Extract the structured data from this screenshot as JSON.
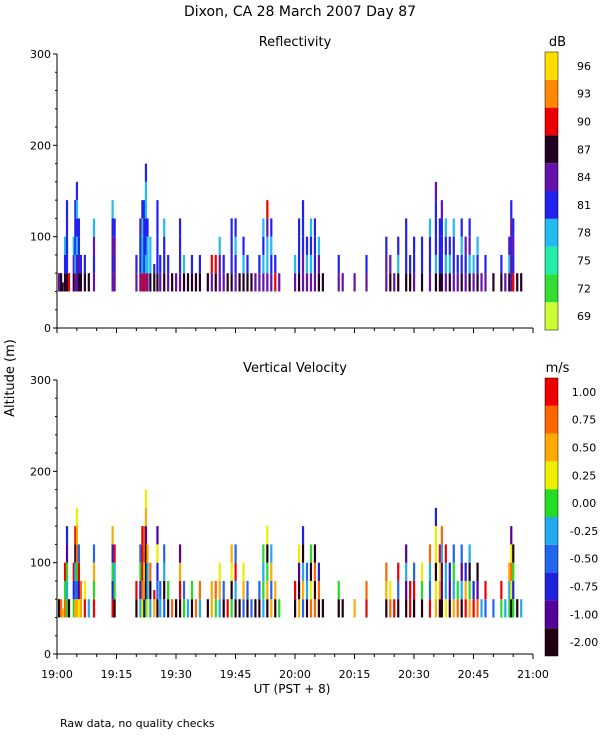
{
  "figure": {
    "title": "Dixon, CA 28 March 2007  Day  87",
    "shared_ylabel": "Altitude (m)",
    "xlabel": "UT  (PST + 8)",
    "footnote": "Raw data, no quality checks"
  },
  "chart_data": [
    {
      "type": "heatmap",
      "title": "Reflectivity",
      "colorbar_unit": "dB",
      "ylim": [
        0,
        300
      ],
      "yticks": [
        0,
        100,
        200,
        300
      ],
      "xlim_minutes": [
        0,
        120
      ],
      "xtick_labels": [
        "19:00",
        "19:15",
        "19:30",
        "19:45",
        "20:00",
        "20:15",
        "20:30",
        "20:45",
        "21:00"
      ],
      "levels": [
        69,
        72,
        75,
        78,
        81,
        84,
        87,
        90,
        93,
        96
      ],
      "level_labels": [
        "69",
        "72",
        "75",
        "78",
        "81",
        "84",
        "87",
        "90",
        "93",
        "96"
      ],
      "colors": [
        "#ccff33",
        "#33dd33",
        "#22eeaa",
        "#22bbee",
        "#2222ee",
        "#6611aa",
        "#220022",
        "#ee0000",
        "#ff8800",
        "#ffdd00"
      ],
      "columns": [
        {
          "t": 0.5,
          "top": 60
        },
        {
          "t": 1.0,
          "top": 60
        },
        {
          "t": 1.4,
          "top": 50
        },
        {
          "t": 2.0,
          "top": 100
        },
        {
          "t": 2.5,
          "top": 140
        },
        {
          "t": 3.0,
          "top": 60
        },
        {
          "t": 4.2,
          "top": 100
        },
        {
          "t": 4.6,
          "top": 140
        },
        {
          "t": 5.0,
          "top": 160
        },
        {
          "t": 5.5,
          "top": 120
        },
        {
          "t": 6.0,
          "top": 80
        },
        {
          "t": 7.0,
          "top": 80
        },
        {
          "t": 8.0,
          "top": 60
        },
        {
          "t": 9.3,
          "top": 120
        },
        {
          "t": 14.0,
          "top": 140
        },
        {
          "t": 14.5,
          "top": 120
        },
        {
          "t": 20.0,
          "top": 80
        },
        {
          "t": 21.0,
          "top": 120
        },
        {
          "t": 21.5,
          "top": 140
        },
        {
          "t": 22.0,
          "top": 140
        },
        {
          "t": 22.4,
          "top": 180
        },
        {
          "t": 22.8,
          "top": 120
        },
        {
          "t": 23.5,
          "top": 100
        },
        {
          "t": 24.5,
          "top": 70
        },
        {
          "t": 25.3,
          "top": 140
        },
        {
          "t": 26.0,
          "top": 80
        },
        {
          "t": 27.0,
          "top": 120
        },
        {
          "t": 28.0,
          "top": 80
        },
        {
          "t": 29.0,
          "top": 60
        },
        {
          "t": 30.0,
          "top": 60
        },
        {
          "t": 31.0,
          "top": 120
        },
        {
          "t": 32.0,
          "top": 80
        },
        {
          "t": 33.0,
          "top": 60
        },
        {
          "t": 34.0,
          "top": 80
        },
        {
          "t": 35.0,
          "top": 60
        },
        {
          "t": 36.0,
          "top": 80
        },
        {
          "t": 38.0,
          "top": 60
        },
        {
          "t": 39.0,
          "top": 80
        },
        {
          "t": 40.0,
          "top": 80
        },
        {
          "t": 41.0,
          "top": 100
        },
        {
          "t": 42.0,
          "top": 80
        },
        {
          "t": 43.0,
          "top": 60
        },
        {
          "t": 44.0,
          "top": 120
        },
        {
          "t": 45.0,
          "top": 120
        },
        {
          "t": 46.0,
          "top": 60
        },
        {
          "t": 47.0,
          "top": 100
        },
        {
          "t": 48.0,
          "top": 80
        },
        {
          "t": 49.0,
          "top": 60
        },
        {
          "t": 50.0,
          "top": 60
        },
        {
          "t": 51.0,
          "top": 80
        },
        {
          "t": 52.0,
          "top": 120
        },
        {
          "t": 53.0,
          "top": 140
        },
        {
          "t": 54.0,
          "top": 120
        },
        {
          "t": 55.0,
          "top": 80
        },
        {
          "t": 56.0,
          "top": 60
        },
        {
          "t": 60.0,
          "top": 80
        },
        {
          "t": 61.0,
          "top": 120
        },
        {
          "t": 62.0,
          "top": 140
        },
        {
          "t": 63.0,
          "top": 100
        },
        {
          "t": 64.0,
          "top": 120
        },
        {
          "t": 65.0,
          "top": 120
        },
        {
          "t": 66.0,
          "top": 100
        },
        {
          "t": 67.0,
          "top": 60
        },
        {
          "t": 71.0,
          "top": 80
        },
        {
          "t": 72.0,
          "top": 60
        },
        {
          "t": 75.0,
          "top": 60
        },
        {
          "t": 78.0,
          "top": 80
        },
        {
          "t": 83.0,
          "top": 100
        },
        {
          "t": 84.0,
          "top": 80
        },
        {
          "t": 85.0,
          "top": 60
        },
        {
          "t": 86.0,
          "top": 100
        },
        {
          "t": 88.0,
          "top": 120
        },
        {
          "t": 89.0,
          "top": 80
        },
        {
          "t": 90.0,
          "top": 100
        },
        {
          "t": 92.0,
          "top": 100
        },
        {
          "t": 94.0,
          "top": 120
        },
        {
          "t": 95.5,
          "top": 160
        },
        {
          "t": 96.5,
          "top": 120
        },
        {
          "t": 97.0,
          "top": 140
        },
        {
          "t": 98.0,
          "top": 120
        },
        {
          "t": 99.0,
          "top": 100
        },
        {
          "t": 100.0,
          "top": 120
        },
        {
          "t": 101.0,
          "top": 80
        },
        {
          "t": 102.0,
          "top": 120
        },
        {
          "t": 103.0,
          "top": 100
        },
        {
          "t": 104.0,
          "top": 120
        },
        {
          "t": 105.0,
          "top": 80
        },
        {
          "t": 106.0,
          "top": 100
        },
        {
          "t": 107.0,
          "top": 60
        },
        {
          "t": 108.0,
          "top": 80
        },
        {
          "t": 110.0,
          "top": 60
        },
        {
          "t": 112.0,
          "top": 80
        },
        {
          "t": 113.0,
          "top": 60
        },
        {
          "t": 114.0,
          "top": 100
        },
        {
          "t": 114.5,
          "top": 140
        },
        {
          "t": 115.0,
          "top": 120
        },
        {
          "t": 116.0,
          "top": 60
        },
        {
          "t": 117.0,
          "top": 60
        }
      ]
    },
    {
      "type": "heatmap",
      "title": "Vertical Velocity",
      "colorbar_unit": "m/s",
      "ylim": [
        0,
        300
      ],
      "yticks": [
        0,
        100,
        200,
        300
      ],
      "xlim_minutes": [
        0,
        120
      ],
      "xtick_labels": [
        "19:00",
        "19:15",
        "19:30",
        "19:45",
        "20:00",
        "20:15",
        "20:30",
        "20:45",
        "21:00"
      ],
      "levels": [
        -2.0,
        -1.0,
        -0.75,
        -0.5,
        -0.25,
        0.0,
        0.25,
        0.5,
        0.75,
        1.0
      ],
      "level_labels": [
        "-2.00",
        "-1.00",
        "-0.75",
        "-0.50",
        "-0.25",
        "0.00",
        "0.25",
        "0.50",
        "0.75",
        "1.00"
      ],
      "colors": [
        "#220011",
        "#550099",
        "#2222dd",
        "#2266ee",
        "#22aaee",
        "#22dd22",
        "#eeee00",
        "#ffaa00",
        "#ff6600",
        "#ee0000"
      ],
      "columns": [
        {
          "t": 0.5,
          "top": 60
        },
        {
          "t": 1.0,
          "top": 60
        },
        {
          "t": 1.4,
          "top": 50
        },
        {
          "t": 2.0,
          "top": 100
        },
        {
          "t": 2.5,
          "top": 140
        },
        {
          "t": 3.0,
          "top": 60
        },
        {
          "t": 4.2,
          "top": 100
        },
        {
          "t": 4.6,
          "top": 140
        },
        {
          "t": 5.0,
          "top": 160
        },
        {
          "t": 5.5,
          "top": 120
        },
        {
          "t": 6.0,
          "top": 80
        },
        {
          "t": 7.0,
          "top": 80
        },
        {
          "t": 8.0,
          "top": 60
        },
        {
          "t": 9.3,
          "top": 120
        },
        {
          "t": 14.0,
          "top": 140
        },
        {
          "t": 14.5,
          "top": 120
        },
        {
          "t": 20.0,
          "top": 80
        },
        {
          "t": 21.0,
          "top": 120
        },
        {
          "t": 21.5,
          "top": 140
        },
        {
          "t": 22.0,
          "top": 140
        },
        {
          "t": 22.4,
          "top": 180
        },
        {
          "t": 22.8,
          "top": 120
        },
        {
          "t": 23.5,
          "top": 100
        },
        {
          "t": 24.5,
          "top": 70
        },
        {
          "t": 25.3,
          "top": 140
        },
        {
          "t": 26.0,
          "top": 80
        },
        {
          "t": 27.0,
          "top": 120
        },
        {
          "t": 28.0,
          "top": 80
        },
        {
          "t": 29.0,
          "top": 60
        },
        {
          "t": 30.0,
          "top": 60
        },
        {
          "t": 31.0,
          "top": 120
        },
        {
          "t": 32.0,
          "top": 80
        },
        {
          "t": 33.0,
          "top": 60
        },
        {
          "t": 34.0,
          "top": 80
        },
        {
          "t": 35.0,
          "top": 60
        },
        {
          "t": 36.0,
          "top": 80
        },
        {
          "t": 38.0,
          "top": 60
        },
        {
          "t": 39.0,
          "top": 80
        },
        {
          "t": 40.0,
          "top": 80
        },
        {
          "t": 41.0,
          "top": 100
        },
        {
          "t": 42.0,
          "top": 80
        },
        {
          "t": 43.0,
          "top": 60
        },
        {
          "t": 44.0,
          "top": 120
        },
        {
          "t": 45.0,
          "top": 120
        },
        {
          "t": 46.0,
          "top": 60
        },
        {
          "t": 47.0,
          "top": 100
        },
        {
          "t": 48.0,
          "top": 80
        },
        {
          "t": 49.0,
          "top": 60
        },
        {
          "t": 50.0,
          "top": 60
        },
        {
          "t": 51.0,
          "top": 80
        },
        {
          "t": 52.0,
          "top": 120
        },
        {
          "t": 53.0,
          "top": 140
        },
        {
          "t": 54.0,
          "top": 120
        },
        {
          "t": 55.0,
          "top": 80
        },
        {
          "t": 56.0,
          "top": 60
        },
        {
          "t": 60.0,
          "top": 80
        },
        {
          "t": 61.0,
          "top": 120
        },
        {
          "t": 62.0,
          "top": 140
        },
        {
          "t": 63.0,
          "top": 100
        },
        {
          "t": 64.0,
          "top": 120
        },
        {
          "t": 65.0,
          "top": 120
        },
        {
          "t": 66.0,
          "top": 100
        },
        {
          "t": 67.0,
          "top": 60
        },
        {
          "t": 71.0,
          "top": 80
        },
        {
          "t": 72.0,
          "top": 60
        },
        {
          "t": 75.0,
          "top": 60
        },
        {
          "t": 78.0,
          "top": 80
        },
        {
          "t": 83.0,
          "top": 100
        },
        {
          "t": 84.0,
          "top": 80
        },
        {
          "t": 85.0,
          "top": 60
        },
        {
          "t": 86.0,
          "top": 100
        },
        {
          "t": 88.0,
          "top": 120
        },
        {
          "t": 89.0,
          "top": 80
        },
        {
          "t": 90.0,
          "top": 100
        },
        {
          "t": 92.0,
          "top": 100
        },
        {
          "t": 94.0,
          "top": 120
        },
        {
          "t": 95.5,
          "top": 160
        },
        {
          "t": 96.5,
          "top": 120
        },
        {
          "t": 97.0,
          "top": 140
        },
        {
          "t": 98.0,
          "top": 120
        },
        {
          "t": 99.0,
          "top": 100
        },
        {
          "t": 100.0,
          "top": 120
        },
        {
          "t": 101.0,
          "top": 80
        },
        {
          "t": 102.0,
          "top": 120
        },
        {
          "t": 103.0,
          "top": 100
        },
        {
          "t": 104.0,
          "top": 120
        },
        {
          "t": 105.0,
          "top": 80
        },
        {
          "t": 106.0,
          "top": 100
        },
        {
          "t": 107.0,
          "top": 60
        },
        {
          "t": 108.0,
          "top": 80
        },
        {
          "t": 110.0,
          "top": 60
        },
        {
          "t": 112.0,
          "top": 80
        },
        {
          "t": 113.0,
          "top": 60
        },
        {
          "t": 114.0,
          "top": 100
        },
        {
          "t": 114.5,
          "top": 140
        },
        {
          "t": 115.0,
          "top": 120
        },
        {
          "t": 116.0,
          "top": 60
        },
        {
          "t": 117.0,
          "top": 60
        }
      ]
    }
  ]
}
